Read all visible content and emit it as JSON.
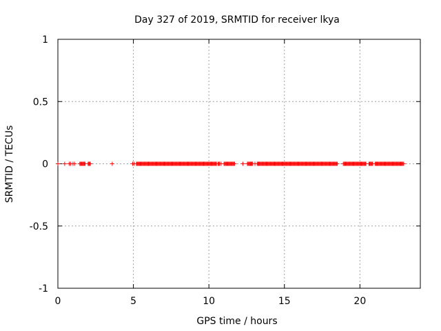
{
  "chart_data": {
    "type": "scatter",
    "title": "Day 327 of 2019, SRMTID for receiver lkya",
    "xlabel": "GPS time / hours",
    "ylabel": "SRMTID / TECUs",
    "xlim": [
      0,
      24
    ],
    "ylim": [
      -1,
      1
    ],
    "x_ticks": [
      0,
      5,
      10,
      15,
      20
    ],
    "x_tick_labels": [
      "0",
      "5",
      "10",
      "15",
      "20"
    ],
    "y_ticks": [
      -1,
      -0.5,
      0,
      0.5,
      1
    ],
    "y_tick_labels": [
      "-1",
      "-0.5",
      "0",
      "0.5",
      "1"
    ],
    "grid": true,
    "marker": "+",
    "series": [
      {
        "name": "SRMTID",
        "color": "#ff0000",
        "y_value": 0,
        "isolated_points": [
          0.0,
          0.45,
          0.75,
          0.85,
          1.0,
          1.1,
          3.6,
          4.95,
          5.05,
          10.8,
          12.25,
          12.55,
          13.05
        ],
        "dense_ranges": [
          [
            1.45,
            1.8
          ],
          [
            2.0,
            2.15
          ],
          [
            5.2,
            10.5
          ],
          [
            10.6,
            10.7
          ],
          [
            11.0,
            11.7
          ],
          [
            12.6,
            12.9
          ],
          [
            13.2,
            18.5
          ],
          [
            18.9,
            20.4
          ],
          [
            20.6,
            20.85
          ],
          [
            21.0,
            22.9
          ]
        ],
        "step_hours": 0.05
      }
    ]
  }
}
